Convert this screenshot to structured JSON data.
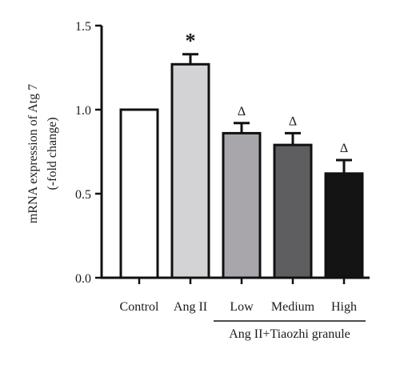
{
  "chart_data": {
    "type": "bar",
    "title": "",
    "ylabel_lines": [
      "mRNA expression of Atg 7",
      "(-fold change)"
    ],
    "xlabel": "",
    "ylim": [
      0,
      1.5
    ],
    "yticks": [
      "0.0",
      "0.5",
      "1.0",
      "1.5"
    ],
    "categories": [
      "Control",
      "Ang II",
      "Low",
      "Medium",
      "High"
    ],
    "values": [
      1.0,
      1.27,
      0.86,
      0.79,
      0.62
    ],
    "errors": [
      0,
      0.06,
      0.06,
      0.07,
      0.08
    ],
    "bar_colors": [
      "#ffffff",
      "#d3d3d6",
      "#a8a6ab",
      "#5e5d60",
      "#141414"
    ],
    "annotations": [
      "",
      "*",
      "Δ",
      "Δ",
      "Δ"
    ],
    "group_label": "Ang II+Tiaozhi granule",
    "group_span": [
      2,
      4
    ]
  }
}
